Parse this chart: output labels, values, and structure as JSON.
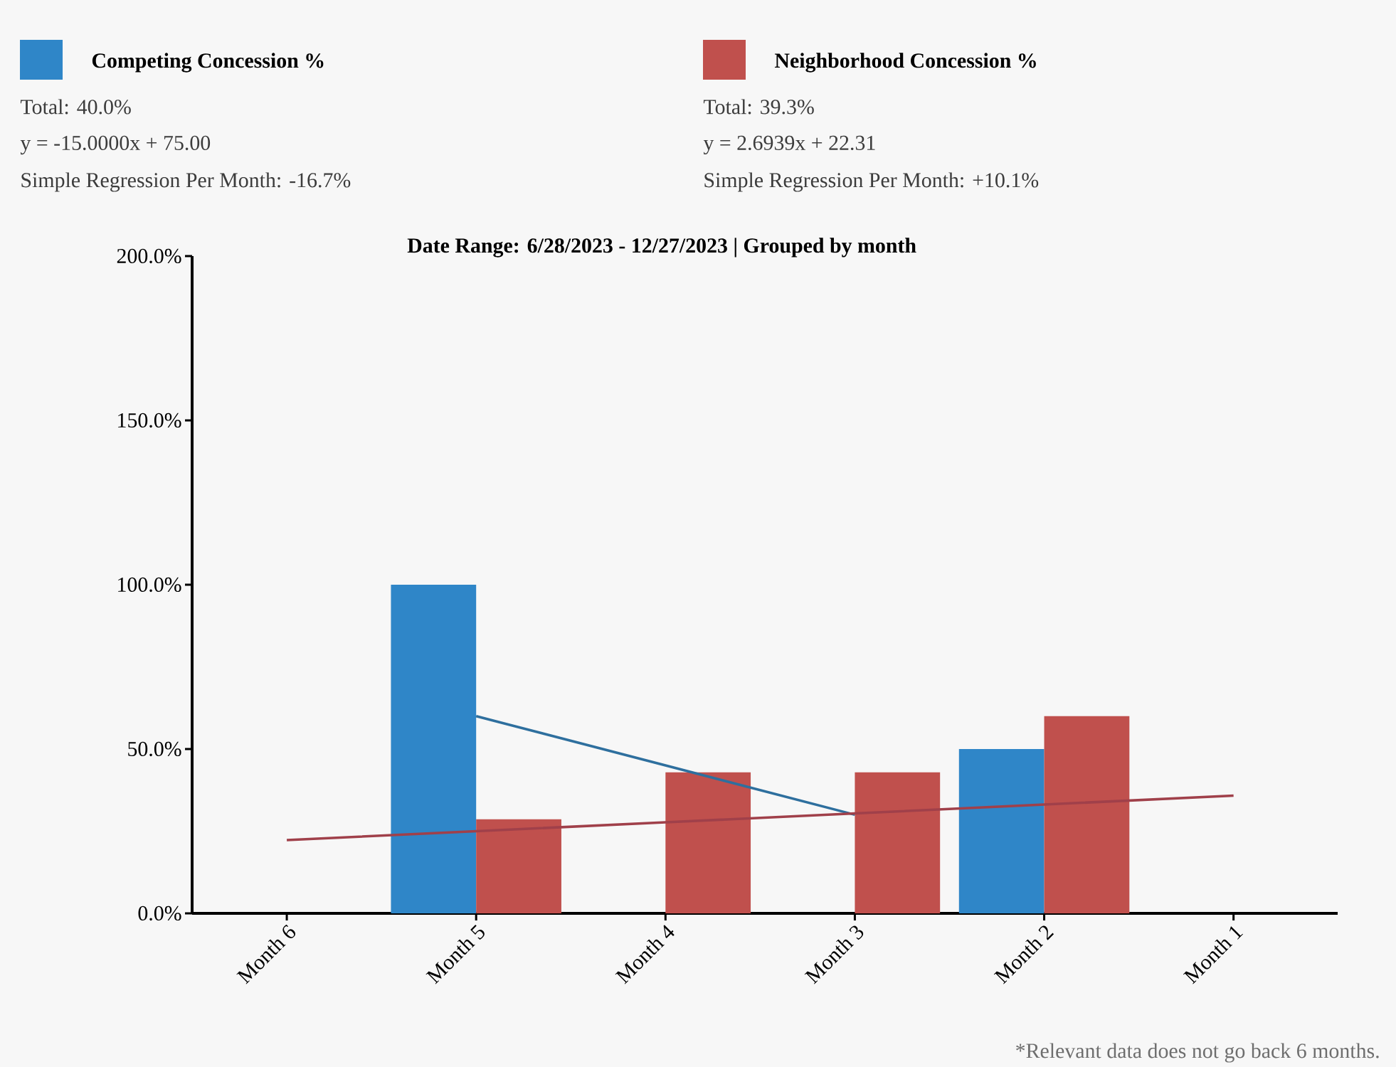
{
  "chart_data": {
    "type": "bar",
    "title": "Date Range: 6/28/2023 - 12/27/2023 | Grouped by month",
    "categories": [
      "Month 6",
      "Month 5",
      "Month 4",
      "Month 3",
      "Month 2",
      "Month 1"
    ],
    "series": [
      {
        "name": "Competing Concession %",
        "color": "#2f86c8",
        "values": [
          null,
          100,
          0,
          0,
          50,
          null
        ]
      },
      {
        "name": "Neighborhood Concession %",
        "color": "#c0504d",
        "values": [
          null,
          28.6,
          42.9,
          42.9,
          60,
          null
        ]
      },
      {
        "type": "line",
        "color": "#2e6f9e",
        "values": [
          null,
          60,
          45,
          30,
          null,
          null
        ]
      },
      {
        "type": "line",
        "color": "#a0404a",
        "values": [
          22.3,
          25,
          27.7,
          30.4,
          33.1,
          35.8
        ]
      }
    ],
    "ylim": [
      0,
      200
    ],
    "yticks": [
      {
        "value": 0,
        "label": "0.0%"
      },
      {
        "value": 50,
        "label": "50.0%"
      },
      {
        "value": 100,
        "label": "100.0%"
      },
      {
        "value": 150,
        "label": "150.0%"
      },
      {
        "value": 200,
        "label": "200.0%"
      }
    ],
    "legend": "top",
    "annotations": [
      "Total: 40.0%",
      "y = -15.0000x + 75.00",
      "Simple Regression Per Month: -16.7%",
      "Total: 39.3%",
      "y = 2.6939x + 22.31",
      "Simple Regression Per Month: +10.1%",
      "*Relevant data does not go back 6 months."
    ]
  }
}
